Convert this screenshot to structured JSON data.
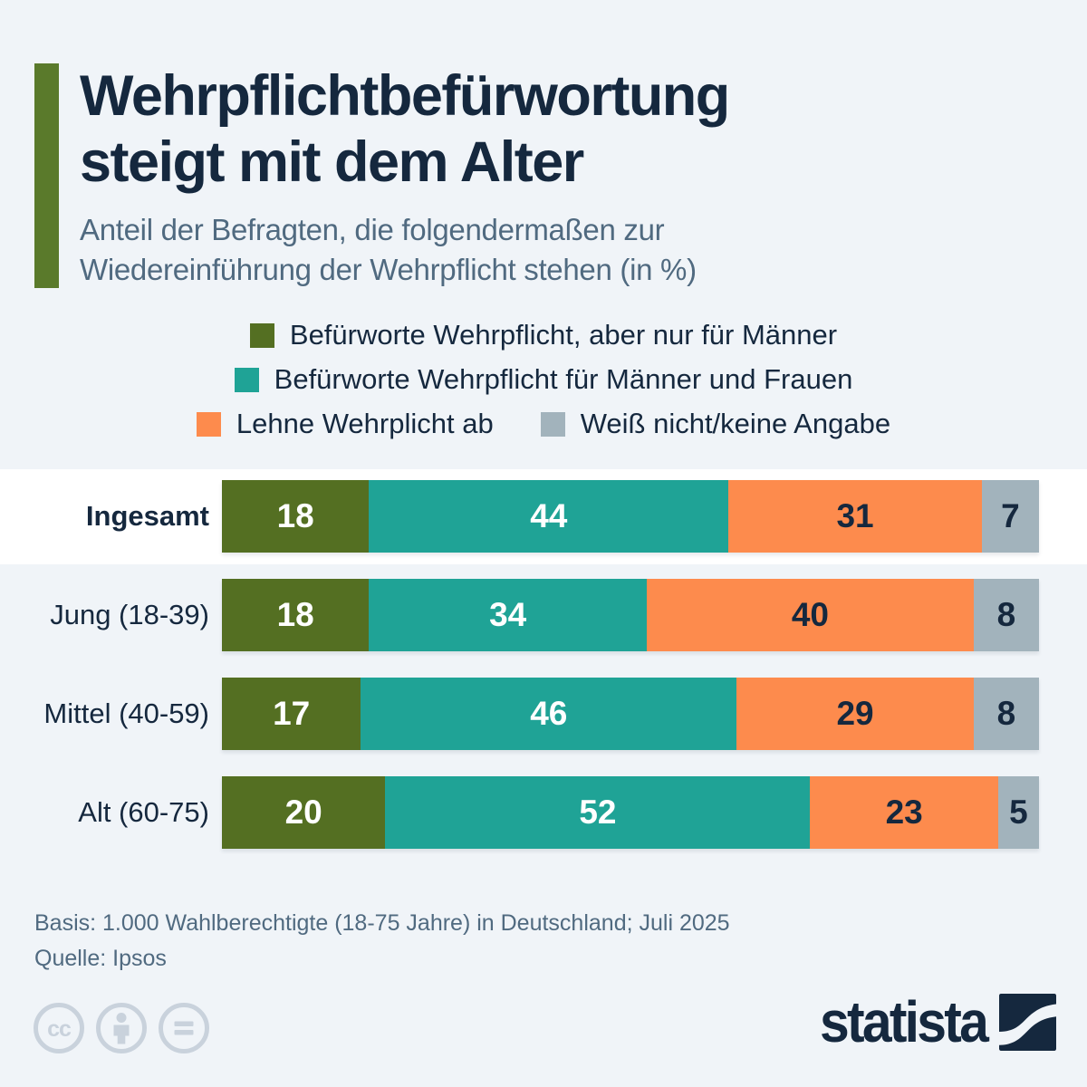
{
  "colors": {
    "background": "#f0f4f8",
    "navy": "#15283e",
    "muted_gray_blue": "#506a80",
    "accent_green": "#5a7a2b",
    "license_icon_gray": "#c9d2dc",
    "highlight_band": "#ffffff"
  },
  "header": {
    "title_line1": "Wehrpflichtbefürwortung",
    "title_line2": "steigt mit dem Alter",
    "subtitle_line1": "Anteil der Befragten, die folgendermaßen zur",
    "subtitle_line2": "Wiedereinführung der Wehrpflicht stehen (in %)",
    "accent_color": "#5a7a2b"
  },
  "legend": {
    "items": [
      {
        "label": "Befürworte Wehrpflicht, aber nur für Männer",
        "color": "#546f22"
      },
      {
        "label": "Befürworte Wehrpflicht für Männer und Frauen",
        "color": "#1fa396"
      },
      {
        "label": "Lehne Wehrplicht ab",
        "color": "#fd8b4d"
      },
      {
        "label": "Weiß nicht/keine Angabe",
        "color": "#a2b3bc"
      }
    ],
    "rows": [
      [
        0
      ],
      [
        1
      ],
      [
        2,
        3
      ]
    ]
  },
  "chart_data": {
    "type": "bar",
    "orientation": "horizontal_stacked",
    "title": "Wehrpflichtbefürwortung steigt mit dem Alter",
    "subtitle": "Anteil der Befragten, die folgendermaßen zur Wiedereinführung der Wehrpflicht stehen (in %)",
    "unit": "%",
    "xlim": [
      0,
      100
    ],
    "grid": false,
    "legend_position": "top-center",
    "categories": [
      "Ingesamt",
      "Jung (18-39)",
      "Mittel (40-59)",
      "Alt (60-75)"
    ],
    "highlighted_category": "Ingesamt",
    "series": [
      {
        "name": "Befürworte Wehrpflicht, aber nur für Männer",
        "color": "#546f22",
        "value_color": "#ffffff",
        "values": [
          18,
          18,
          17,
          20
        ]
      },
      {
        "name": "Befürworte Wehrpflicht für Männer und Frauen",
        "color": "#1fa396",
        "value_color": "#ffffff",
        "values": [
          44,
          34,
          46,
          52
        ]
      },
      {
        "name": "Lehne Wehrplicht ab",
        "color": "#fd8b4d",
        "value_color": "#15283e",
        "values": [
          31,
          40,
          29,
          23
        ]
      },
      {
        "name": "Weiß nicht/keine Angabe",
        "color": "#a2b3bc",
        "value_color": "#15283e",
        "values": [
          7,
          8,
          8,
          5
        ]
      }
    ]
  },
  "footer": {
    "basis": "Basis: 1.000 Wahlberechtigte (18-75 Jahre) in Deutschland; Juli 2025",
    "source": "Quelle: Ipsos"
  },
  "branding": {
    "logo_text": "statista",
    "license_icons": [
      "cc-icon",
      "attribution-person-icon",
      "equals-icon"
    ]
  }
}
